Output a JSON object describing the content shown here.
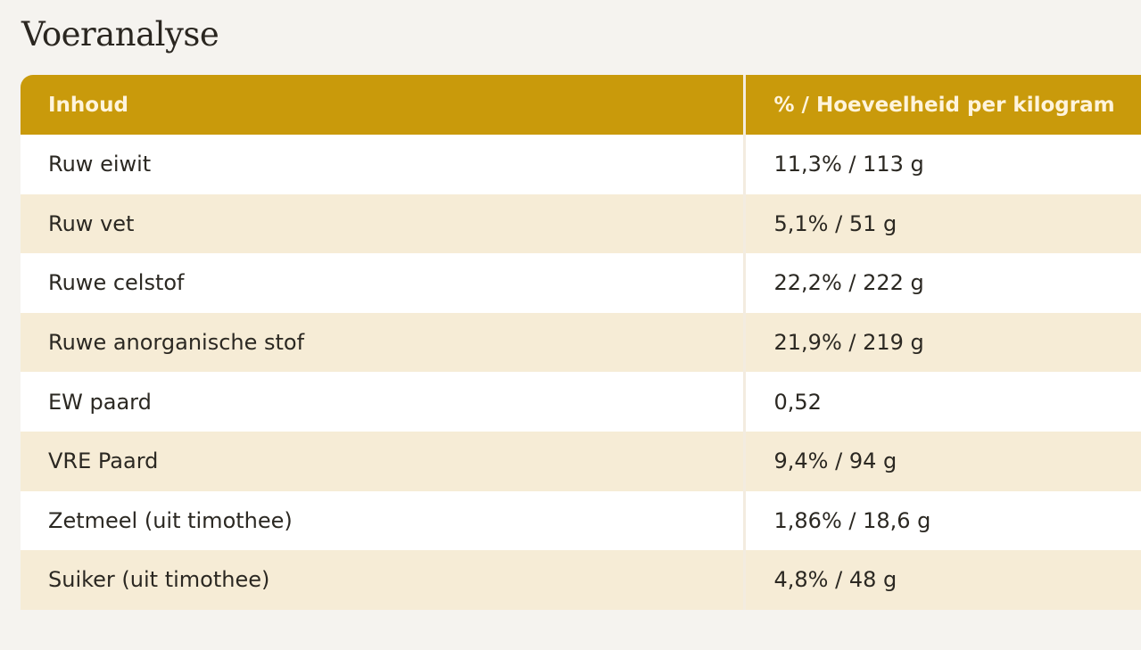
{
  "title": "Voeranalyse",
  "table": {
    "headers": [
      "Inhoud",
      "% / Hoeveelheid per kilogram"
    ],
    "rows": [
      [
        "Ruw eiwit",
        "11,3% / 113 g"
      ],
      [
        "Ruw vet",
        "5,1% / 51 g"
      ],
      [
        "Ruwe celstof",
        "22,2% / 222 g"
      ],
      [
        "Ruwe anorganische stof",
        "21,9% / 219 g"
      ],
      [
        "EW paard",
        "0,52"
      ],
      [
        "VRE Paard",
        "9,4% / 94 g"
      ],
      [
        "Zetmeel (uit timothee)",
        "1,86% / 18,6 g"
      ],
      [
        "Suiker (uit timothee)",
        "4,8% / 48 g"
      ]
    ]
  },
  "colors": {
    "header_bg": "#c99a0b",
    "header_text": "#fff4dc",
    "row_alt_bg": "#f6ecd6",
    "row_bg": "#ffffff",
    "page_bg": "#f5f3ef"
  }
}
